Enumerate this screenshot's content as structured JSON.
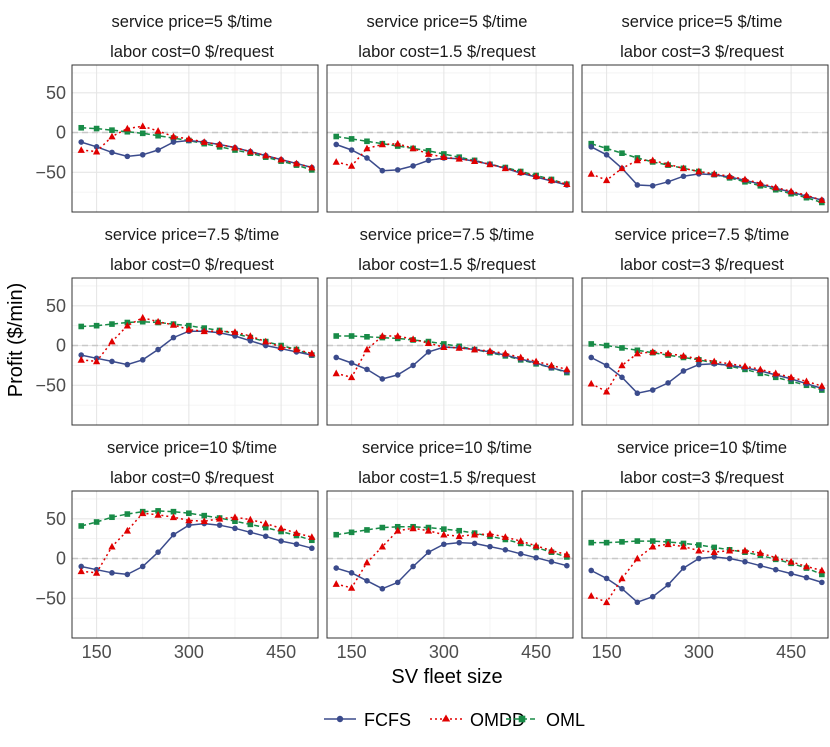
{
  "chart_data": {
    "type": "line",
    "layout": "facet-grid-3x3",
    "xlabel": "SV fleet size",
    "ylabel": "Profit ($/min)",
    "xlim": [
      110,
      510
    ],
    "ylim": [
      -100,
      85
    ],
    "xticks": [
      150,
      300,
      450
    ],
    "yticks": [
      -50,
      0,
      50
    ],
    "x": [
      125,
      150,
      175,
      200,
      225,
      250,
      275,
      300,
      325,
      350,
      375,
      400,
      425,
      450,
      475,
      500
    ],
    "legend": {
      "position": "bottom",
      "entries": [
        {
          "name": "FCFS",
          "color": "#3B4B8C",
          "marker": "circle",
          "dash": "solid"
        },
        {
          "name": "OMDD",
          "color": "#E00000",
          "marker": "triangle",
          "dash": "dotted"
        },
        {
          "name": "OML",
          "color": "#188B47",
          "marker": "square",
          "dash": "dashed"
        }
      ]
    },
    "reference_line": {
      "y": 0,
      "style": "dashed",
      "color": "#c8c8c8"
    },
    "rows": [
      {
        "label": "service price=5 $/time"
      },
      {
        "label": "service price=7.5 $/time"
      },
      {
        "label": "service price=10 $/time"
      }
    ],
    "cols": [
      {
        "label": "labor cost=0 $/request"
      },
      {
        "label": "labor cost=1.5 $/request"
      },
      {
        "label": "labor cost=3 $/request"
      }
    ],
    "panels": [
      {
        "row": 0,
        "col": 0,
        "series": {
          "FCFS": [
            -12,
            -18,
            -25,
            -30,
            -28,
            -22,
            -12,
            -10,
            -12,
            -15,
            -19,
            -24,
            -29,
            -34,
            -39,
            -44
          ],
          "OMDD": [
            -22,
            -24,
            -5,
            5,
            8,
            2,
            -5,
            -8,
            -12,
            -15,
            -19,
            -24,
            -29,
            -34,
            -39,
            -44
          ],
          "OML": [
            6,
            5,
            3,
            1,
            -1,
            -4,
            -7,
            -10,
            -14,
            -18,
            -22,
            -26,
            -31,
            -36,
            -41,
            -47
          ]
        }
      },
      {
        "row": 0,
        "col": 1,
        "series": {
          "FCFS": [
            -15,
            -22,
            -32,
            -48,
            -47,
            -42,
            -35,
            -32,
            -33,
            -36,
            -40,
            -45,
            -51,
            -56,
            -61,
            -66
          ],
          "OMDD": [
            -37,
            -42,
            -20,
            -15,
            -14,
            -20,
            -27,
            -31,
            -33,
            -36,
            -40,
            -45,
            -50,
            -55,
            -60,
            -65
          ],
          "OML": [
            -5,
            -8,
            -11,
            -14,
            -17,
            -20,
            -23,
            -27,
            -31,
            -35,
            -40,
            -44,
            -49,
            -54,
            -59,
            -65
          ]
        }
      },
      {
        "row": 0,
        "col": 2,
        "series": {
          "FCFS": [
            -18,
            -28,
            -45,
            -66,
            -67,
            -62,
            -55,
            -52,
            -53,
            -56,
            -60,
            -65,
            -70,
            -75,
            -80,
            -85
          ],
          "OMDD": [
            -52,
            -60,
            -45,
            -35,
            -35,
            -40,
            -45,
            -49,
            -52,
            -55,
            -59,
            -64,
            -69,
            -74,
            -79,
            -85
          ],
          "OML": [
            -14,
            -20,
            -26,
            -32,
            -37,
            -41,
            -45,
            -49,
            -53,
            -57,
            -62,
            -67,
            -72,
            -77,
            -82,
            -88
          ]
        }
      },
      {
        "row": 1,
        "col": 0,
        "series": {
          "FCFS": [
            -12,
            -16,
            -20,
            -24,
            -18,
            -5,
            10,
            18,
            18,
            16,
            12,
            6,
            0,
            -4,
            -8,
            -12
          ],
          "OMDD": [
            -18,
            -20,
            5,
            25,
            35,
            30,
            26,
            20,
            18,
            18,
            17,
            12,
            5,
            -2,
            -5,
            -10
          ],
          "OML": [
            24,
            25,
            27,
            29,
            30,
            29,
            27,
            25,
            22,
            19,
            15,
            10,
            5,
            0,
            -5,
            -12
          ]
        }
      },
      {
        "row": 1,
        "col": 1,
        "series": {
          "FCFS": [
            -15,
            -22,
            -30,
            -42,
            -37,
            -25,
            -8,
            -2,
            -3,
            -5,
            -8,
            -12,
            -17,
            -22,
            -28,
            -33
          ],
          "OMDD": [
            -35,
            -40,
            -5,
            12,
            12,
            8,
            3,
            -2,
            -3,
            -5,
            -7,
            -10,
            -15,
            -20,
            -25,
            -30
          ],
          "OML": [
            12,
            12,
            11,
            10,
            9,
            7,
            5,
            2,
            -1,
            -5,
            -9,
            -13,
            -18,
            -23,
            -28,
            -34
          ]
        }
      },
      {
        "row": 1,
        "col": 2,
        "series": {
          "FCFS": [
            -15,
            -25,
            -40,
            -60,
            -56,
            -47,
            -32,
            -24,
            -23,
            -25,
            -28,
            -32,
            -37,
            -42,
            -48,
            -54
          ],
          "OMDD": [
            -48,
            -58,
            -25,
            -10,
            -8,
            -10,
            -13,
            -17,
            -20,
            -23,
            -26,
            -30,
            -35,
            -40,
            -45,
            -51
          ],
          "OML": [
            2,
            0,
            -3,
            -6,
            -9,
            -12,
            -15,
            -18,
            -22,
            -26,
            -30,
            -35,
            -40,
            -45,
            -50,
            -56
          ]
        }
      },
      {
        "row": 2,
        "col": 0,
        "series": {
          "FCFS": [
            -10,
            -14,
            -18,
            -20,
            -10,
            8,
            30,
            42,
            44,
            42,
            38,
            33,
            28,
            22,
            18,
            13
          ],
          "OMDD": [
            -16,
            -18,
            15,
            35,
            57,
            55,
            52,
            48,
            47,
            50,
            52,
            49,
            44,
            38,
            32,
            27
          ],
          "OML": [
            41,
            46,
            52,
            56,
            59,
            60,
            59,
            57,
            54,
            51,
            47,
            43,
            39,
            34,
            29,
            23
          ]
        }
      },
      {
        "row": 2,
        "col": 1,
        "series": {
          "FCFS": [
            -12,
            -18,
            -28,
            -38,
            -30,
            -10,
            8,
            18,
            20,
            19,
            15,
            11,
            6,
            1,
            -4,
            -9
          ],
          "OMDD": [
            -32,
            -37,
            -5,
            15,
            35,
            38,
            35,
            30,
            28,
            30,
            31,
            27,
            22,
            16,
            10,
            5
          ],
          "OML": [
            30,
            33,
            36,
            39,
            40,
            40,
            39,
            37,
            35,
            32,
            28,
            24,
            19,
            14,
            8,
            2
          ]
        }
      },
      {
        "row": 2,
        "col": 2,
        "series": {
          "FCFS": [
            -15,
            -25,
            -38,
            -55,
            -48,
            -33,
            -12,
            0,
            2,
            0,
            -4,
            -9,
            -14,
            -19,
            -24,
            -30
          ],
          "OMDD": [
            -47,
            -55,
            -25,
            0,
            15,
            18,
            15,
            10,
            8,
            10,
            10,
            7,
            1,
            -4,
            -10,
            -15
          ],
          "OML": [
            20,
            20,
            21,
            22,
            22,
            21,
            19,
            17,
            14,
            11,
            8,
            4,
            -1,
            -6,
            -12,
            -20
          ]
        }
      }
    ]
  }
}
